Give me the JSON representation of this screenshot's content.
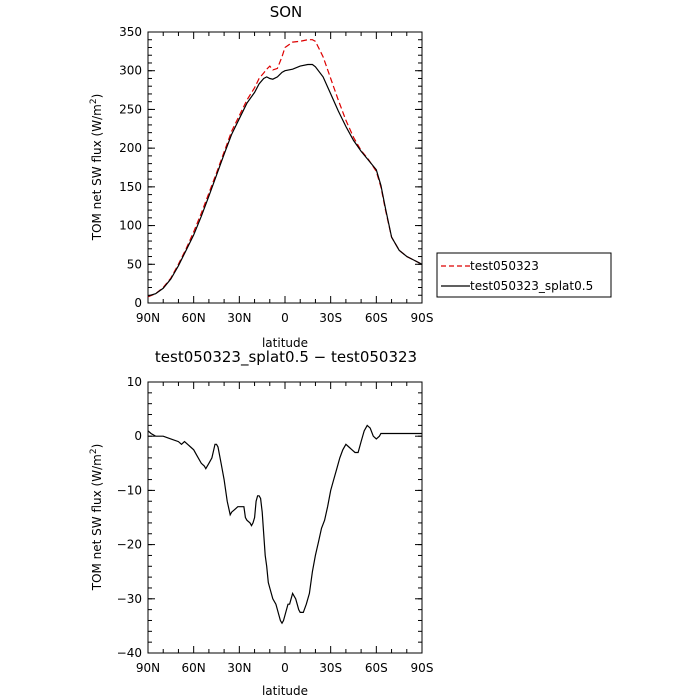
{
  "chart_data": [
    {
      "type": "line",
      "title": "SON",
      "xlabel": "latitude",
      "ylabel_main": "TOM net SW flux (W/m",
      "ylabel_sup": "2",
      "ylabel_end": ")",
      "xlim": [
        90,
        -90
      ],
      "ylim": [
        0,
        350
      ],
      "x_ticks": [
        90,
        60,
        30,
        0,
        -30,
        -60,
        -90
      ],
      "x_tick_labels": [
        "90N",
        "60N",
        "30N",
        "0",
        "30S",
        "60S",
        "90S"
      ],
      "y_ticks": [
        0,
        50,
        100,
        150,
        200,
        250,
        300,
        350
      ],
      "y_tick_labels": [
        "0",
        "50",
        "100",
        "150",
        "200",
        "250",
        "300",
        "350"
      ],
      "legend": "right, outside",
      "series": [
        {
          "name": "test050323",
          "color": "#dd0000",
          "dash": "dashed",
          "x": [
            90,
            85,
            80,
            75,
            70,
            65,
            60,
            55,
            50,
            45,
            40,
            35,
            30,
            25,
            20,
            17,
            14,
            12,
            10,
            8,
            5,
            2,
            0,
            -5,
            -10,
            -15,
            -18,
            -20,
            -25,
            -30,
            -35,
            -40,
            -45,
            -50,
            -55,
            -60,
            -63,
            -66,
            -70,
            -75,
            -80,
            -85,
            -90
          ],
          "y": [
            8,
            12,
            20,
            32,
            50,
            70,
            92,
            116,
            142,
            168,
            195,
            222,
            242,
            262,
            278,
            290,
            297,
            302,
            306,
            301,
            303,
            318,
            330,
            337,
            338,
            340,
            340,
            338,
            318,
            290,
            262,
            236,
            214,
            197,
            185,
            170,
            150,
            120,
            85,
            68,
            60,
            55,
            50
          ]
        },
        {
          "name": "test050323_splat0.5",
          "color": "#000000",
          "dash": "solid",
          "x": [
            90,
            85,
            80,
            75,
            70,
            65,
            60,
            55,
            50,
            45,
            40,
            35,
            30,
            25,
            20,
            17,
            14,
            12,
            10,
            8,
            5,
            2,
            0,
            -5,
            -10,
            -15,
            -18,
            -20,
            -25,
            -30,
            -35,
            -40,
            -45,
            -50,
            -55,
            -60,
            -63,
            -66,
            -70,
            -75,
            -80,
            -85,
            -90
          ],
          "y": [
            9,
            12,
            19,
            31,
            48,
            68,
            88,
            112,
            138,
            165,
            192,
            218,
            238,
            258,
            272,
            283,
            290,
            292,
            290,
            289,
            292,
            298,
            300,
            302,
            306,
            308,
            308,
            305,
            292,
            270,
            248,
            228,
            210,
            196,
            184,
            172,
            152,
            122,
            85,
            68,
            60,
            55,
            50
          ]
        }
      ]
    },
    {
      "type": "line",
      "title": "test050323_splat0.5 − test050323",
      "xlabel": "latitude",
      "ylabel_main": "TOM net SW flux (W/m",
      "ylabel_sup": "2",
      "ylabel_end": ")",
      "xlim": [
        90,
        -90
      ],
      "ylim": [
        -40,
        10
      ],
      "x_ticks": [
        90,
        60,
        30,
        0,
        -30,
        -60,
        -90
      ],
      "x_tick_labels": [
        "90N",
        "60N",
        "30N",
        "0",
        "30S",
        "60S",
        "90S"
      ],
      "y_ticks": [
        -40,
        -30,
        -20,
        -10,
        0,
        10
      ],
      "y_tick_labels": [
        "−40",
        "−30",
        "−20",
        "−10",
        "0",
        "10"
      ],
      "series": [
        {
          "color": "#000000",
          "dash": "solid",
          "x": [
            90,
            88,
            85,
            80,
            75,
            70,
            68,
            66,
            64,
            62,
            60,
            58,
            55,
            53,
            52,
            50,
            48,
            46,
            45,
            44,
            42,
            40,
            38,
            36,
            35,
            33,
            31,
            29,
            27,
            26,
            25,
            23,
            22,
            21,
            20,
            19,
            18,
            17,
            16,
            15,
            14,
            13,
            12,
            11,
            10,
            8,
            6,
            5,
            4,
            3,
            2,
            1,
            0,
            -1,
            -2,
            -3,
            -4,
            -5,
            -6,
            -7,
            -8,
            -9,
            -10,
            -12,
            -14,
            -16,
            -18,
            -20,
            -22,
            -24,
            -26,
            -28,
            -30,
            -32,
            -34,
            -36,
            -38,
            -40,
            -42,
            -44,
            -46,
            -48,
            -50,
            -52,
            -54,
            -56,
            -58,
            -60,
            -62,
            -63,
            -64,
            -66,
            -68,
            -70,
            -75,
            -80,
            -85,
            -90
          ],
          "y": [
            1,
            0.5,
            0,
            0,
            -0.5,
            -1,
            -1.5,
            -1,
            -1.5,
            -2,
            -2.5,
            -3.5,
            -5,
            -5.5,
            -6,
            -5,
            -4,
            -1.5,
            -1.5,
            -2,
            -5,
            -8,
            -12,
            -14.5,
            -14,
            -13.5,
            -13,
            -13,
            -13,
            -15,
            -15.5,
            -16,
            -16.5,
            -16,
            -15,
            -12,
            -11,
            -11,
            -11.5,
            -14,
            -18,
            -22,
            -24,
            -27,
            -28,
            -30,
            -31,
            -32,
            -33,
            -34,
            -34.5,
            -34,
            -33,
            -32,
            -31,
            -31,
            -30,
            -29,
            -29.5,
            -30,
            -31,
            -32,
            -32.5,
            -32.5,
            -31,
            -29,
            -25,
            -22,
            -19.5,
            -17,
            -15.5,
            -13,
            -10,
            -8,
            -6,
            -4,
            -2.5,
            -1.5,
            -2,
            -2.5,
            -3,
            -3,
            -1,
            1,
            2,
            1.5,
            0,
            -0.5,
            0,
            0.5,
            0.5,
            0.5,
            0.5,
            0.5,
            0.5,
            0.5,
            0.5,
            0.5
          ]
        }
      ]
    }
  ]
}
